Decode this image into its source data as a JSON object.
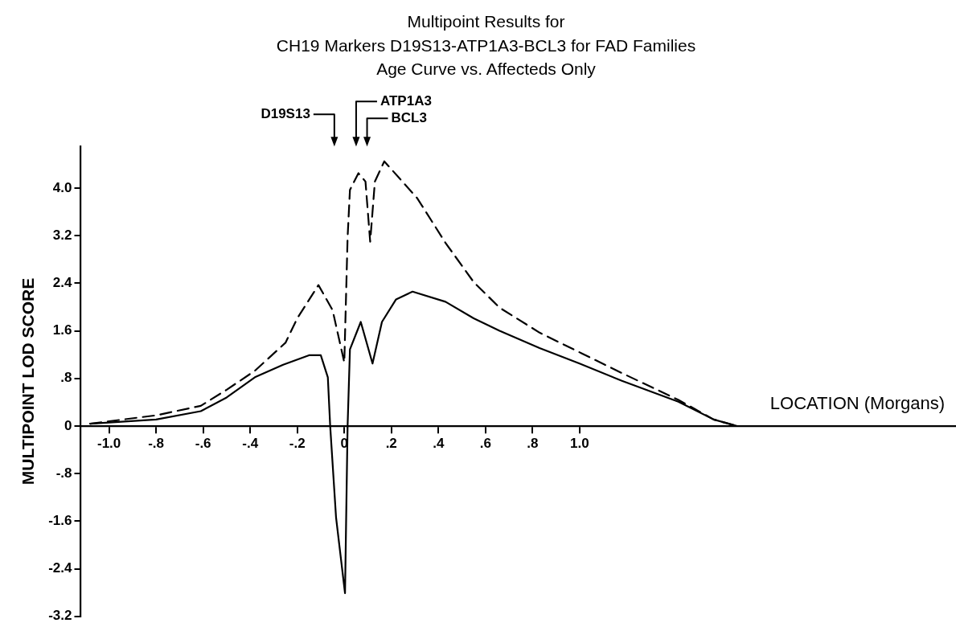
{
  "chart_data": {
    "type": "line",
    "title": "Multipoint Results for\nCH19 Markers D19S13-ATP1A3-BCL3 for FAD Families\nAge Curve vs. Affecteds Only",
    "xlabel": "LOCATION (Morgans)",
    "ylabel": "MULTIPOINT LOD SCORE",
    "xlim": [
      -1.12,
      2.6
    ],
    "ylim": [
      -3.2,
      4.7
    ],
    "xticks": [
      {
        "value": -1,
        "label": "-1.0"
      },
      {
        "value": -0.8,
        "label": "-.8"
      },
      {
        "value": -0.6,
        "label": "-.6"
      },
      {
        "value": -0.4,
        "label": "-.4"
      },
      {
        "value": -0.2,
        "label": "-.2"
      },
      0,
      {
        "value": 0.2,
        "label": ".2"
      },
      {
        "value": 0.4,
        "label": ".4"
      },
      {
        "value": 0.6,
        "label": ".6"
      },
      {
        "value": 0.8,
        "label": ".8"
      },
      {
        "value": 1,
        "label": "1.0"
      }
    ],
    "yticks": [
      {
        "value": 4,
        "label": "4.0"
      },
      3.2,
      2.4,
      1.6,
      {
        "value": 0.8,
        "label": ".8"
      },
      0,
      {
        "value": -0.8,
        "label": "-.8"
      },
      -1.6,
      -2.4,
      -3.2
    ],
    "grid": false,
    "legend": false,
    "marker": "none",
    "annotations": [
      "D19S13",
      "ATP1A3",
      "BCL3"
    ],
    "series": [
      {
        "color": "#000000",
        "line_style": "solid",
        "x": [
          -1.08,
          -0.8,
          -0.61,
          -0.5,
          -0.38,
          -0.26,
          -0.15,
          -0.1,
          -0.07,
          -0.06,
          -0.035,
          0.003,
          0.014,
          0.024,
          0.07,
          0.12,
          0.16,
          0.22,
          0.29,
          0.43,
          0.55,
          0.66,
          0.83,
          1.0,
          1.18,
          1.42,
          1.57,
          1.67
        ],
        "values": [
          0.04,
          0.11,
          0.25,
          0.48,
          0.82,
          1.03,
          1.19,
          1.19,
          0.82,
          0,
          -1.54,
          -2.81,
          0,
          1.29,
          1.75,
          1.05,
          1.75,
          2.13,
          2.26,
          2.09,
          1.81,
          1.6,
          1.31,
          1.05,
          0.76,
          0.41,
          0.11,
          0
        ]
      },
      {
        "color": "#000000",
        "line_style": "dashed",
        "x": [
          -1.08,
          -0.8,
          -0.61,
          -0.5,
          -0.38,
          -0.25,
          -0.2,
          -0.11,
          -0.05,
          0,
          0.014,
          0.024,
          0.06,
          0.09,
          0.11,
          0.13,
          0.17,
          0.31,
          0.43,
          0.55,
          0.66,
          0.83,
          1.01,
          1.18,
          1.42,
          1.57,
          1.67
        ],
        "values": [
          0.04,
          0.18,
          0.34,
          0.61,
          0.93,
          1.4,
          1.81,
          2.37,
          1.95,
          1.07,
          3.17,
          3.97,
          4.25,
          4.11,
          3.1,
          4.11,
          4.45,
          3.83,
          3.08,
          2.42,
          1.99,
          1.57,
          1.22,
          0.89,
          0.44,
          0.11,
          0
        ]
      }
    ]
  }
}
